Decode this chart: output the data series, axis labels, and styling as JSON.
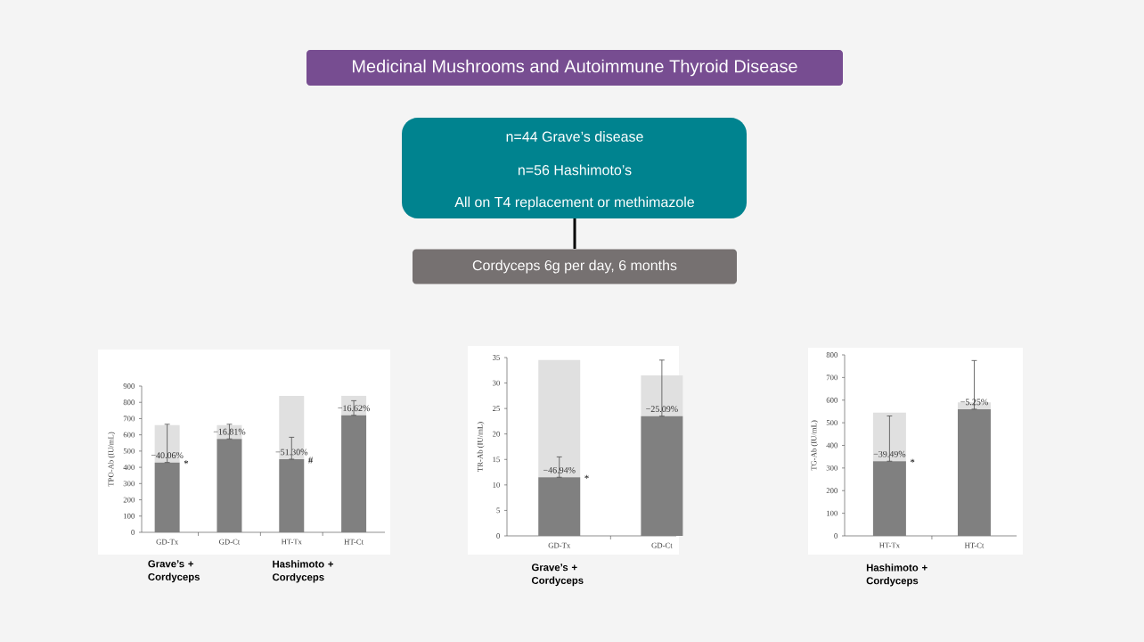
{
  "chart_data": [
    {
      "type": "other",
      "title": "Medicinal Mushrooms and Autoimmune Thyroid Disease",
      "annotations": [
        "n=44 Grave’s disease",
        "n=56 Hashimoto’s",
        "All on T4 replacement or methimazole",
        "Cordyceps 6g per day, 6 months"
      ]
    },
    {
      "type": "bar",
      "ylabel": "TPO-Ab (IU/mL)",
      "categories": [
        "GD-Tx",
        "GD-Ct",
        "HT-Tx",
        "HT-Ct"
      ],
      "stacked": true,
      "series": [
        {
          "color": "#808080",
          "values": [
            430,
            575,
            450,
            720
          ],
          "errors": [
            [
              430,
              665
            ],
            [
              575,
              665
            ],
            [
              450,
              585
            ],
            [
              720,
              810
            ]
          ]
        },
        {
          "color": "#e0e0e0",
          "values": [
            230,
            85,
            390,
            120
          ]
        }
      ],
      "ylim": [
        0,
        900
      ],
      "yticks": [
        0,
        100,
        200,
        300,
        400,
        500,
        600,
        700,
        800,
        900
      ],
      "annotations": [
        {
          "text": "−40.06%",
          "x": "GD-Tx",
          "y": 430
        },
        {
          "text": "−16.81%",
          "x": "GD-Ct",
          "y": 575
        },
        {
          "text": "−51.30%",
          "x": "HT-Tx",
          "y": 450
        },
        {
          "text": "−16.62%",
          "x": "HT-Ct",
          "y": 720
        },
        {
          "text": "*",
          "x": "GD-Tx",
          "y": 430
        },
        {
          "text": "#",
          "x": "HT-Tx",
          "y": 450
        },
        "Grave’s + Cordyceps",
        "Hashimoto + Cordyceps"
      ]
    },
    {
      "type": "bar",
      "ylabel": "TR-Ab (IU/mL)",
      "categories": [
        "GD-Tx",
        "GD-Ct"
      ],
      "stacked": true,
      "series": [
        {
          "color": "#808080",
          "values": [
            11.5,
            23.5
          ],
          "errors": [
            [
              11.5,
              15.5
            ],
            [
              23.5,
              34.5
            ]
          ]
        },
        {
          "color": "#e0e0e0",
          "values": [
            23,
            8
          ]
        }
      ],
      "ylim": [
        0,
        35
      ],
      "yticks": [
        0,
        5,
        10,
        15,
        20,
        25,
        30,
        35
      ],
      "annotations": [
        {
          "text": "−46.94%",
          "x": "GD-Tx",
          "y": 11.5
        },
        {
          "text": "−25.09%",
          "x": "GD-Ct",
          "y": 23.5
        },
        {
          "text": "*",
          "x": "GD-Tx",
          "y": 11.5
        },
        "Grave’s + Cordyceps"
      ]
    },
    {
      "type": "bar",
      "ylabel": "TG-Ab (IU/mL)",
      "categories": [
        "HT-Tx",
        "HT-Ct"
      ],
      "stacked": true,
      "series": [
        {
          "color": "#808080",
          "values": [
            330,
            560
          ],
          "errors": [
            [
              330,
              530
            ],
            [
              560,
              775
            ]
          ]
        },
        {
          "color": "#e0e0e0",
          "values": [
            215,
            30
          ]
        }
      ],
      "ylim": [
        0,
        800
      ],
      "yticks": [
        0,
        100,
        200,
        300,
        400,
        500,
        600,
        700,
        800
      ],
      "annotations": [
        {
          "text": "−39.49%",
          "x": "HT-Tx",
          "y": 330
        },
        {
          "text": "−5.25%",
          "x": "HT-Ct",
          "y": 560
        },
        {
          "text": "*",
          "x": "HT-Tx",
          "y": 330
        },
        "Hashimoto + Cordyceps"
      ]
    }
  ]
}
